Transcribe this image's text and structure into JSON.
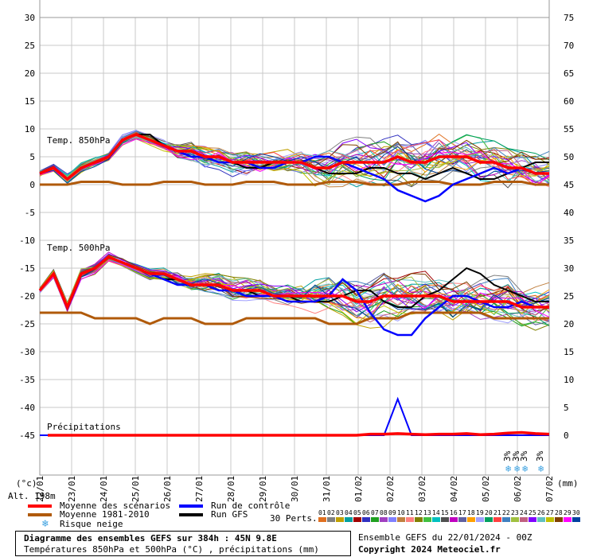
{
  "chart_data": {
    "type": "line",
    "labels": {
      "t850": "Temp. 850hPa",
      "t500": "Temp. 500hPa",
      "precip": "Précipitations",
      "unit_left": "(°c)",
      "unit_right": "(mm)",
      "alt": "Alt. 198m",
      "perts": "30 Perts."
    },
    "left_ticks": [
      30,
      25,
      20,
      15,
      10,
      5,
      0,
      -5,
      -10,
      -15,
      -20,
      -25,
      -30,
      -35,
      -40,
      -45
    ],
    "right_ticks": [
      75,
      70,
      65,
      60,
      55,
      50,
      45,
      40,
      35,
      30,
      25,
      20,
      15,
      10,
      5,
      0
    ],
    "x_labels": [
      "22/01",
      "23/01",
      "24/01",
      "25/01",
      "26/01",
      "27/01",
      "28/01",
      "29/01",
      "30/01",
      "31/01",
      "01/02",
      "02/02",
      "03/02",
      "04/02",
      "05/02",
      "06/02",
      "07/02"
    ],
    "snow_risk_pct": [
      "3%",
      "3%",
      "3%",
      "3%"
    ],
    "t850": {
      "mean": [
        2,
        3,
        1,
        3,
        4,
        5,
        8,
        9,
        8,
        7,
        6,
        6,
        5,
        5,
        4,
        4,
        4,
        4,
        4,
        4,
        3,
        3,
        4,
        4,
        4,
        4,
        5,
        4,
        4,
        5,
        5,
        5,
        4,
        4,
        3,
        3,
        2,
        2
      ],
      "climo": [
        0,
        0,
        0,
        0.5,
        0.5,
        0.5,
        0,
        0,
        0,
        0.5,
        0.5,
        0.5,
        0,
        0,
        0,
        0.5,
        0.5,
        0.5,
        0,
        0,
        0,
        0.5,
        0.5,
        0.5,
        0,
        0,
        0,
        0.5,
        0.5,
        0.5,
        0,
        0,
        0,
        0.5,
        0.5,
        0.5,
        0,
        0
      ],
      "control": [
        2,
        3,
        1,
        3,
        4,
        5,
        8,
        9,
        8,
        7,
        6,
        5,
        5,
        4,
        4,
        4,
        3,
        3,
        4,
        4,
        5,
        5,
        4,
        3,
        2,
        1,
        -1,
        -2,
        -3,
        -2,
        0,
        1,
        2,
        3,
        2,
        3,
        2,
        2
      ],
      "gfs": [
        2,
        3,
        1,
        3,
        4,
        5,
        8,
        9,
        9,
        7,
        6,
        5,
        5,
        5,
        4,
        3,
        3,
        4,
        4,
        4,
        3,
        2,
        2,
        2,
        3,
        3,
        2,
        2,
        1,
        2,
        3,
        2,
        1,
        1,
        2,
        3,
        4,
        4
      ]
    },
    "t500": {
      "mean": [
        -19,
        -16,
        -22,
        -16,
        -15,
        -13,
        -14,
        -15,
        -16,
        -16,
        -17,
        -18,
        -18,
        -18,
        -19,
        -19,
        -19,
        -20,
        -20,
        -20,
        -20,
        -20,
        -20,
        -21,
        -21,
        -20,
        -20,
        -20,
        -20,
        -20,
        -21,
        -21,
        -21,
        -21,
        -21,
        -22,
        -22,
        -22
      ],
      "climo": [
        -23,
        -23,
        -23,
        -23,
        -24,
        -24,
        -24,
        -24,
        -25,
        -24,
        -24,
        -24,
        -25,
        -25,
        -25,
        -24,
        -24,
        -24,
        -24,
        -24,
        -24,
        -25,
        -25,
        -25,
        -24,
        -24,
        -24,
        -23,
        -23,
        -23,
        -23,
        -23,
        -23,
        -24,
        -24,
        -24,
        -24,
        -24
      ],
      "control": [
        -19,
        -16,
        -22,
        -16,
        -15,
        -13,
        -14,
        -15,
        -16,
        -17,
        -18,
        -18,
        -18,
        -19,
        -19,
        -20,
        -20,
        -20,
        -21,
        -21,
        -21,
        -20,
        -17,
        -19,
        -23,
        -26,
        -27,
        -27,
        -24,
        -22,
        -20,
        -20,
        -21,
        -22,
        -22,
        -21,
        -22,
        -22
      ],
      "gfs": [
        -19,
        -16,
        -22,
        -16,
        -15,
        -13,
        -14,
        -15,
        -16,
        -17,
        -17,
        -18,
        -18,
        -19,
        -19,
        -19,
        -20,
        -20,
        -20,
        -21,
        -21,
        -21,
        -20,
        -19,
        -19,
        -21,
        -22,
        -22,
        -20,
        -19,
        -17,
        -15,
        -16,
        -18,
        -19,
        -20,
        -21,
        -21
      ]
    },
    "precip": {
      "mean": [
        0,
        0,
        0,
        0,
        0,
        0,
        0,
        0,
        0,
        0,
        0,
        0,
        0,
        0,
        0,
        0,
        0,
        0,
        0,
        0,
        0,
        0,
        0,
        0,
        0.2,
        0.2,
        0.3,
        0.2,
        0.1,
        0.2,
        0.2,
        0.3,
        0.1,
        0.2,
        0.4,
        0.5,
        0.3,
        0.2
      ],
      "control": [
        0,
        0,
        0,
        0,
        0,
        0,
        0,
        0,
        0,
        0,
        0,
        0,
        0,
        0,
        0,
        0,
        0,
        0,
        0,
        0,
        0,
        0,
        0,
        0,
        0,
        0,
        6.5,
        0,
        0,
        0,
        0,
        0,
        0,
        0,
        0,
        0,
        0,
        0
      ]
    },
    "colors": {
      "mean": "#ff0000",
      "climo": "#b05a0a",
      "control": "#0000ff",
      "gfs": "#000000",
      "grid": "#c8c8c8"
    }
  },
  "legend": {
    "mean_label": "Moyenne des scénarios",
    "climo_label": "Moyenne 1981-2010",
    "snow_label": "Risque neige",
    "control_label": "Run de contrôle",
    "gfs_label": "Run GFS",
    "pert_numbers": [
      "01",
      "02",
      "03",
      "04",
      "05",
      "06",
      "07",
      "08",
      "09",
      "10",
      "11",
      "12",
      "13",
      "14",
      "15",
      "16",
      "17",
      "18",
      "19",
      "20",
      "21",
      "22",
      "23",
      "24",
      "25",
      "26",
      "27",
      "28",
      "29",
      "30"
    ],
    "pert_colors": [
      "#e07020",
      "#808080",
      "#c0a000",
      "#00a0a0",
      "#a00000",
      "#3030c0",
      "#20a020",
      "#a040c0",
      "#8080ff",
      "#c08040",
      "#ff8080",
      "#808000",
      "#40c040",
      "#00c0c0",
      "#505050",
      "#c000c0",
      "#6060a0",
      "#ffa000",
      "#a0a0ff",
      "#00a060",
      "#ff4040",
      "#4080c0",
      "#a0c040",
      "#c06080",
      "#8000ff",
      "#60c0c0",
      "#c0c000",
      "#804000",
      "#ff00ff",
      "#0040a0"
    ]
  },
  "footer": {
    "title": "Diagramme des ensembles GEFS sur 384h : 45N 9.8E",
    "subtitle": "Températures 850hPa et 500hPa (°C) , précipitations (mm)",
    "run": "Ensemble GEFS du 22/01/2024 - 00Z",
    "copyright": "Copyright 2024 Meteociel.fr"
  }
}
